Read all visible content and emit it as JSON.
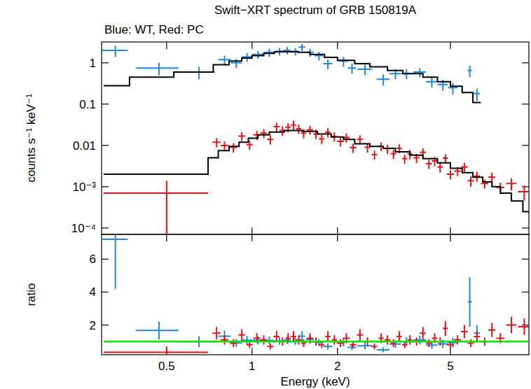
{
  "chart_data": [
    {
      "type": "scatter",
      "title": "Swift−XRT spectrum of GRB 150819A",
      "subtitle": "Blue: WT, Red: PC",
      "y_label": "counts s⁻¹ keV⁻¹",
      "log": true,
      "tick_labels": "y",
      "xlim": [
        0.295,
        9.45
      ],
      "xticks": [
        0.5,
        1,
        2,
        5
      ],
      "ylim": [
        7e-05,
        3.2
      ],
      "yticks": [
        {
          "value": 0.0001,
          "label": "10⁻⁴"
        },
        {
          "value": 0.001,
          "label": "10⁻³"
        },
        0.01,
        0.1,
        1
      ],
      "series": [
        {
          "type": "scatter",
          "color": "#1e88e5",
          "x": [
            0.33,
            0.47,
            0.65,
            0.8,
            0.88,
            0.96,
            1.05,
            1.15,
            1.25,
            1.33,
            1.42,
            1.5,
            1.6,
            1.72,
            1.85,
            2.1,
            2.25,
            2.5,
            2.9,
            3.2,
            3.5,
            3.9,
            4.3,
            4.7,
            5.1,
            5.85,
            6.2
          ],
          "x_errors": [
            0.035,
            0.08,
            0.09,
            0.04,
            0.04,
            0.04,
            0.05,
            0.05,
            0.04,
            0.04,
            0.04,
            0.04,
            0.05,
            0.06,
            0.07,
            0.08,
            0.08,
            0.15,
            0.15,
            0.15,
            0.15,
            0.2,
            0.2,
            0.2,
            0.2,
            0.1,
            0.15
          ],
          "values": [
            2.0,
            0.75,
            0.6,
            1.2,
            1.0,
            1.4,
            1.6,
            1.8,
            1.9,
            2.0,
            1.9,
            2.4,
            1.8,
            1.5,
            0.95,
            1.1,
            0.75,
            0.7,
            0.4,
            0.55,
            0.55,
            0.6,
            0.35,
            0.3,
            0.25,
            0.65,
            0.18
          ],
          "errors": [
            0.6,
            0.25,
            0.2,
            0.3,
            0.25,
            0.35,
            0.35,
            0.4,
            0.4,
            0.4,
            0.4,
            0.5,
            0.4,
            0.35,
            0.25,
            0.3,
            0.2,
            0.2,
            0.12,
            0.15,
            0.15,
            0.15,
            0.1,
            0.09,
            0.08,
            0.2,
            0.06
          ]
        },
        {
          "type": "scatter",
          "color": "#ee1111",
          "x": [
            0.5,
            0.75,
            0.8,
            0.86,
            0.92,
            0.98,
            1.04,
            1.1,
            1.16,
            1.22,
            1.28,
            1.34,
            1.4,
            1.46,
            1.52,
            1.6,
            1.68,
            1.76,
            1.85,
            1.95,
            2.05,
            2.15,
            2.27,
            2.4,
            2.55,
            2.7,
            2.85,
            3.0,
            3.15,
            3.3,
            3.45,
            3.6,
            3.8,
            4.0,
            4.2,
            4.4,
            4.6,
            4.8,
            5.0,
            5.3,
            5.6,
            5.9,
            6.2,
            6.6,
            7.0,
            7.5,
            8.2,
            9.1
          ],
          "x_errors": [
            0.2,
            0.025,
            0.025,
            0.025,
            0.025,
            0.025,
            0.03,
            0.03,
            0.03,
            0.03,
            0.03,
            0.03,
            0.03,
            0.03,
            0.03,
            0.04,
            0.04,
            0.04,
            0.04,
            0.04,
            0.06,
            0.06,
            0.06,
            0.06,
            0.06,
            0.06,
            0.06,
            0.07,
            0.07,
            0.07,
            0.07,
            0.07,
            0.1,
            0.1,
            0.1,
            0.1,
            0.1,
            0.1,
            0.15,
            0.15,
            0.15,
            0.15,
            0.15,
            0.2,
            0.2,
            0.25,
            0.35,
            0.45
          ],
          "values": [
            0.0007,
            0.012,
            0.0099,
            0.009,
            0.0168,
            0.0104,
            0.018,
            0.0198,
            0.014,
            0.0286,
            0.023,
            0.0276,
            0.0312,
            0.0253,
            0.0198,
            0.024,
            0.019,
            0.0144,
            0.0208,
            0.0165,
            0.0126,
            0.0156,
            0.0088,
            0.014,
            0.009,
            0.006,
            0.0096,
            0.0083,
            0.0063,
            0.0085,
            0.0048,
            0.0062,
            0.005,
            0.0068,
            0.0036,
            0.0042,
            0.003,
            0.0049,
            0.002,
            0.0024,
            0.003,
            0.0014,
            0.0018,
            0.0012,
            0.0017,
            0.00096,
            0.0012,
            0.00076
          ],
          "errors": [
            0.0007,
            0.003,
            0.0025,
            0.0023,
            0.004,
            0.0026,
            0.0045,
            0.005,
            0.0035,
            0.007,
            0.006,
            0.007,
            0.008,
            0.0063,
            0.005,
            0.006,
            0.0048,
            0.0036,
            0.0052,
            0.0041,
            0.0032,
            0.0039,
            0.0022,
            0.0035,
            0.0023,
            0.0015,
            0.0024,
            0.0021,
            0.0016,
            0.0021,
            0.0012,
            0.0016,
            0.0013,
            0.0017,
            0.0009,
            0.0011,
            0.0008,
            0.0012,
            0.0005,
            0.0006,
            0.0008,
            0.0004,
            0.0005,
            0.0003,
            0.0005,
            0.0003,
            0.0004,
            0.0003
          ]
        },
        {
          "type": "step",
          "color": "#000000",
          "bins": [
            0.3,
            0.37,
            0.53,
            0.73,
            0.83,
            0.92,
            1.0,
            1.1,
            1.2,
            1.45,
            1.6,
            1.8,
            2.0,
            2.3,
            2.6,
            3.0,
            3.4,
            4.0,
            4.5,
            5.0,
            5.5,
            6.0,
            6.4
          ],
          "values": [
            0.28,
            0.45,
            0.6,
            0.9,
            1.1,
            1.3,
            1.5,
            1.7,
            1.85,
            1.8,
            1.6,
            1.35,
            1.15,
            0.95,
            0.8,
            0.65,
            0.55,
            0.45,
            0.35,
            0.27,
            0.19,
            0.11
          ]
        },
        {
          "type": "step",
          "color": "#000000",
          "bins": [
            0.3,
            0.7,
            0.76,
            0.83,
            0.9,
            0.97,
            1.05,
            1.15,
            1.3,
            1.5,
            1.7,
            1.9,
            2.1,
            2.3,
            2.6,
            2.9,
            3.2,
            3.6,
            4.0,
            4.5,
            5.0,
            5.5,
            6.0,
            6.5,
            7.0,
            7.5,
            8.2,
            9.0,
            9.45
          ],
          "values": [
            0.002,
            0.005,
            0.0075,
            0.0095,
            0.012,
            0.015,
            0.018,
            0.021,
            0.023,
            0.022,
            0.019,
            0.016,
            0.014,
            0.011,
            0.0095,
            0.0085,
            0.007,
            0.0058,
            0.0048,
            0.0038,
            0.0028,
            0.0022,
            0.0017,
            0.0013,
            0.001,
            0.0007,
            0.00045,
            0.00025
          ]
        }
      ]
    },
    {
      "type": "scatter",
      "x_label": "Energy (keV)",
      "y_label": "ratio",
      "log": "x",
      "xlim": [
        0.295,
        9.45
      ],
      "xticks": [
        0.5,
        1,
        2,
        5
      ],
      "ylim": [
        0.2,
        7.5
      ],
      "yticks": [
        2,
        4,
        6
      ],
      "series": [
        {
          "type": "scatter",
          "color": "#1e88e5",
          "x": [
            0.33,
            0.47,
            0.65,
            0.8,
            0.88,
            0.96,
            1.05,
            1.15,
            1.25,
            1.33,
            1.42,
            1.5,
            1.6,
            1.72,
            1.85,
            2.1,
            2.25,
            2.5,
            2.9,
            3.2,
            3.5,
            3.9,
            4.3,
            4.7,
            5.1,
            5.85,
            6.2
          ],
          "x_errors": [
            0.035,
            0.08,
            0.09,
            0.04,
            0.04,
            0.04,
            0.05,
            0.05,
            0.04,
            0.04,
            0.04,
            0.04,
            0.05,
            0.06,
            0.07,
            0.08,
            0.08,
            0.15,
            0.15,
            0.15,
            0.15,
            0.2,
            0.2,
            0.2,
            0.2,
            0.1,
            0.15
          ],
          "values": [
            7.2,
            1.67,
            1.0,
            1.33,
            0.91,
            1.08,
            1.07,
            1.06,
            1.03,
            1.08,
            1.03,
            1.33,
            1.13,
            0.94,
            0.7,
            0.96,
            0.65,
            0.74,
            0.5,
            0.85,
            1.0,
            1.09,
            0.78,
            0.86,
            0.93,
            3.4,
            1.5
          ],
          "errors": [
            3.0,
            0.55,
            0.33,
            0.33,
            0.23,
            0.27,
            0.23,
            0.24,
            0.22,
            0.22,
            0.22,
            0.28,
            0.25,
            0.22,
            0.18,
            0.26,
            0.17,
            0.21,
            0.15,
            0.23,
            0.27,
            0.27,
            0.22,
            0.26,
            0.3,
            1.5,
            0.5
          ]
        },
        {
          "type": "scatter",
          "color": "#ee1111",
          "x": [
            0.5,
            0.75,
            0.8,
            0.86,
            0.92,
            0.98,
            1.04,
            1.1,
            1.16,
            1.22,
            1.28,
            1.34,
            1.4,
            1.46,
            1.52,
            1.6,
            1.68,
            1.76,
            1.85,
            1.95,
            2.05,
            2.15,
            2.27,
            2.4,
            2.55,
            2.7,
            2.85,
            3.0,
            3.15,
            3.3,
            3.45,
            3.6,
            3.8,
            4.0,
            4.2,
            4.4,
            4.6,
            4.8,
            5.0,
            5.3,
            5.6,
            5.9,
            6.2,
            6.6,
            7.0,
            7.5,
            8.2,
            9.1
          ],
          "x_errors": [
            0.2,
            0.025,
            0.025,
            0.025,
            0.025,
            0.025,
            0.03,
            0.03,
            0.03,
            0.03,
            0.03,
            0.03,
            0.03,
            0.03,
            0.03,
            0.04,
            0.04,
            0.04,
            0.04,
            0.04,
            0.06,
            0.06,
            0.06,
            0.06,
            0.06,
            0.06,
            0.06,
            0.07,
            0.07,
            0.07,
            0.07,
            0.07,
            0.1,
            0.1,
            0.1,
            0.1,
            0.1,
            0.1,
            0.15,
            0.15,
            0.15,
            0.15,
            0.15,
            0.2,
            0.2,
            0.25,
            0.35,
            0.45
          ],
          "values": [
            0.35,
            1.5,
            1.1,
            0.9,
            1.4,
            0.8,
            1.2,
            1.1,
            0.7,
            1.3,
            1.0,
            1.2,
            1.3,
            1.1,
            0.9,
            1.2,
            1.0,
            0.8,
            1.3,
            1.1,
            0.9,
            1.2,
            0.8,
            1.4,
            1.0,
            0.7,
            1.2,
            1.1,
            0.9,
            1.3,
            0.8,
            1.1,
            1.0,
            1.5,
            0.9,
            1.2,
            1.0,
            1.8,
            0.8,
            1.1,
            1.6,
            0.9,
            1.3,
            1.0,
            1.7,
            1.2,
            2.0,
            1.9
          ],
          "errors": [
            0.35,
            0.38,
            0.28,
            0.23,
            0.35,
            0.2,
            0.3,
            0.28,
            0.18,
            0.33,
            0.25,
            0.3,
            0.33,
            0.28,
            0.23,
            0.3,
            0.25,
            0.2,
            0.33,
            0.28,
            0.23,
            0.3,
            0.2,
            0.35,
            0.25,
            0.18,
            0.3,
            0.28,
            0.23,
            0.33,
            0.2,
            0.28,
            0.25,
            0.38,
            0.23,
            0.3,
            0.25,
            0.45,
            0.2,
            0.28,
            0.4,
            0.23,
            0.33,
            0.25,
            0.43,
            0.3,
            0.5,
            0.5
          ]
        },
        {
          "type": "line",
          "color": "#00ee00",
          "x": [
            0.3,
            9.45
          ],
          "values": [
            1,
            1
          ]
        }
      ]
    }
  ]
}
